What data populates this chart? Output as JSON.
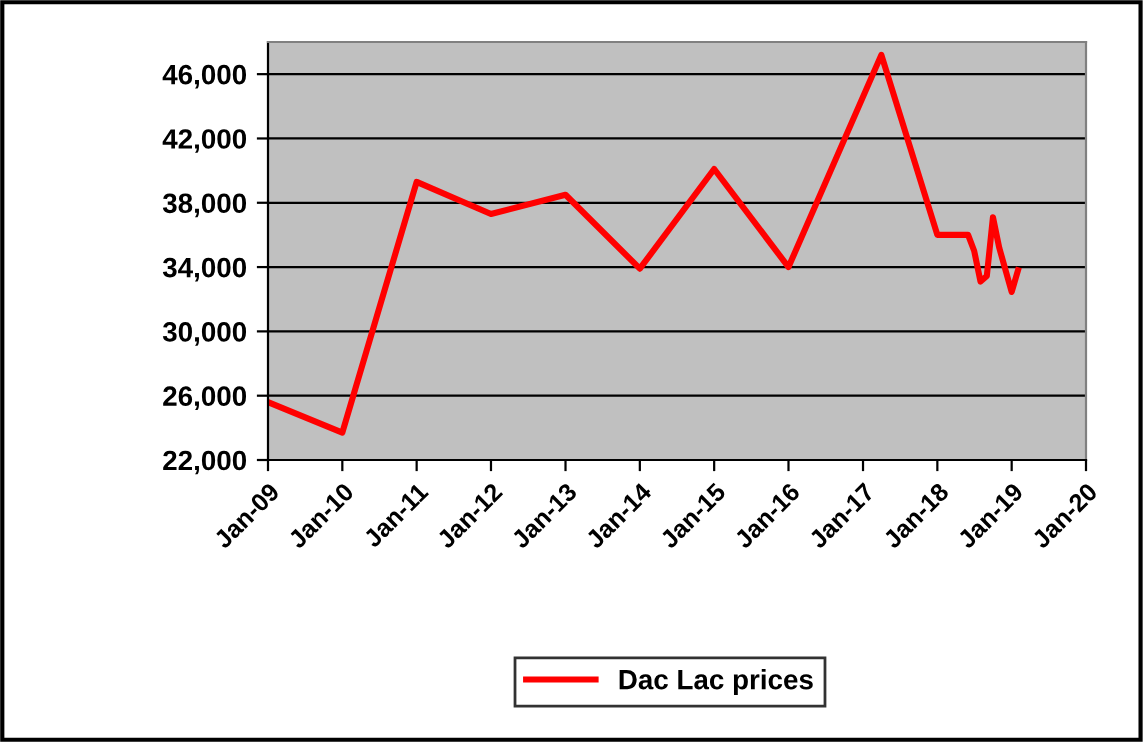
{
  "chart_data": {
    "type": "line",
    "x": [
      "2009-01",
      "2010-01",
      "2011-01",
      "2012-01",
      "2013-01",
      "2014-01",
      "2015-01",
      "2016-01",
      "2017-04",
      "2018-01",
      "2018-06",
      "2018-07",
      "2018-08",
      "2018-09",
      "2018-10",
      "2018-11",
      "2019-01",
      "2019-02"
    ],
    "series": [
      {
        "name": "Dac Lac prices",
        "color": "#ff0000",
        "values": [
          25600,
          23700,
          39300,
          37300,
          38500,
          33900,
          40100,
          34000,
          47200,
          36000,
          36000,
          35000,
          33100,
          33450,
          37100,
          35200,
          32450,
          33800
        ]
      }
    ],
    "xlim": [
      "2009-01",
      "2020-01"
    ],
    "xticks": [
      {
        "value": "2009-01",
        "label": "Jan-09"
      },
      {
        "value": "2010-01",
        "label": "Jan-10"
      },
      {
        "value": "2011-01",
        "label": "Jan-11"
      },
      {
        "value": "2012-01",
        "label": "Jan-12"
      },
      {
        "value": "2013-01",
        "label": "Jan-13"
      },
      {
        "value": "2014-01",
        "label": "Jan-14"
      },
      {
        "value": "2015-01",
        "label": "Jan-15"
      },
      {
        "value": "2016-01",
        "label": "Jan-16"
      },
      {
        "value": "2017-01",
        "label": "Jan-17"
      },
      {
        "value": "2018-01",
        "label": "Jan-18"
      },
      {
        "value": "2019-01",
        "label": "Jan-19"
      },
      {
        "value": "2020-01",
        "label": "Jan-20"
      }
    ],
    "ylim": [
      22000,
      48000
    ],
    "yticks": [
      {
        "value": 22000,
        "label": "22,000"
      },
      {
        "value": 26000,
        "label": "26,000"
      },
      {
        "value": 30000,
        "label": "30,000"
      },
      {
        "value": 34000,
        "label": "34,000"
      },
      {
        "value": 38000,
        "label": "38,000"
      },
      {
        "value": 42000,
        "label": "42,000"
      },
      {
        "value": 46000,
        "label": "46,000"
      }
    ],
    "grid": "y",
    "legend": "bottom",
    "marker": "none",
    "line_style": "solid"
  }
}
